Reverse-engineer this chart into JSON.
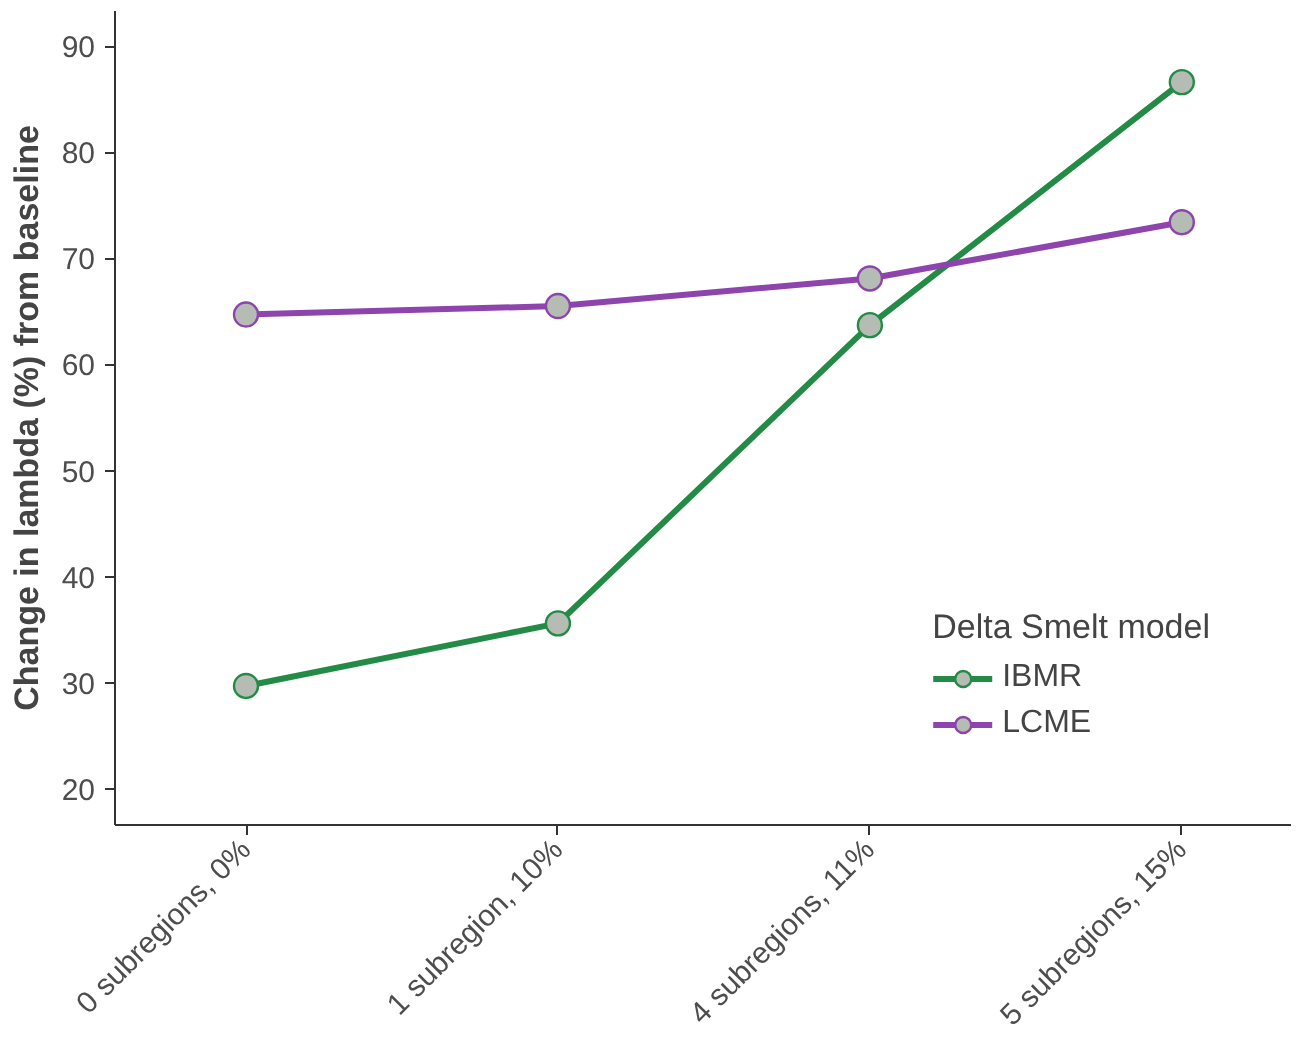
{
  "chart_data": {
    "type": "line",
    "ylabel": "Change in lambda (%) from baseline",
    "legend_title": "Delta Smelt model",
    "categories": [
      "0 subregions, 0%",
      "1 subregion, 10%",
      "4 subregions, 11%",
      "5 subregions, 15%"
    ],
    "series": [
      {
        "name": "IBMR",
        "color": "#238b45",
        "values": [
          29.7,
          35.6,
          63.7,
          86.6
        ]
      },
      {
        "name": "LCME",
        "color": "#8e44ad",
        "values": [
          64.7,
          65.5,
          68.1,
          73.4
        ]
      }
    ],
    "ylim": [
      16.6,
      93.3
    ],
    "yticks": [
      20,
      30,
      40,
      50,
      60,
      70,
      80,
      90
    ],
    "grid": false,
    "legend": "bottom right",
    "marker": "circle",
    "line_style": "solid"
  }
}
